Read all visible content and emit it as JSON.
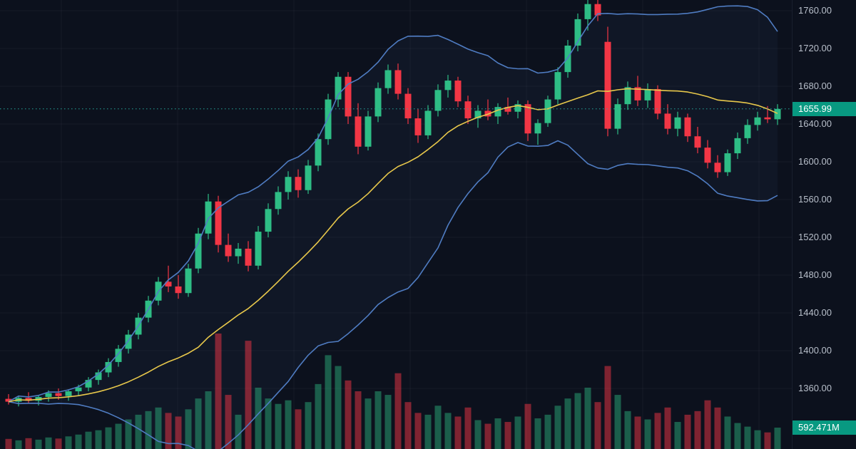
{
  "price_axis": {
    "tick_labels": [
      "1760.00",
      "1720.00",
      "1680.00",
      "1640.00",
      "1600.00",
      "1560.00",
      "1520.00",
      "1480.00",
      "1440.00",
      "1400.00",
      "1360.00"
    ],
    "last_price_label": "1655.99",
    "last_volume_label": "592.471M"
  },
  "colors": {
    "background": "#0c111d",
    "up": "#2ebd85",
    "down": "#f23645",
    "volume_up": "rgba(46,189,133,0.45)",
    "volume_down": "rgba(242,54,69,0.5)",
    "bollinger_band": "#4f7cc2",
    "bollinger_fill": "rgba(79,124,194,0.06)",
    "bollinger_basis": "#e8c84b",
    "last_price_line": "#26a69a",
    "badge_background": "#089981",
    "axis_text": "#b8bfca",
    "grid": "rgba(151,161,186,0.07)"
  },
  "chart_data": {
    "type": "candlestick",
    "title": "",
    "legend_position": "none",
    "grid": true,
    "last_price": 1655.99,
    "y_axis": {
      "visible_price_range": [
        1295.9,
        1771.3
      ],
      "tick_step": 40,
      "ticks": [
        1760,
        1720,
        1680,
        1640,
        1600,
        1560,
        1520,
        1480,
        1440,
        1400,
        1360
      ]
    },
    "indicators": [
      {
        "name": "bollinger-bands",
        "period": 20,
        "stddev_mult": 2
      },
      {
        "name": "sma-basis",
        "period": 20
      },
      {
        "name": "volume",
        "last_value_label": "592.471M",
        "unit": "M"
      }
    ],
    "candles_ohlcv": [
      [
        1349,
        1354,
        1343,
        1346,
        280
      ],
      [
        1346,
        1352,
        1341,
        1350,
        240
      ],
      [
        1350,
        1356,
        1344,
        1347,
        300
      ],
      [
        1347,
        1353,
        1342,
        1351,
        260
      ],
      [
        1351,
        1358,
        1346,
        1355,
        320
      ],
      [
        1355,
        1360,
        1348,
        1352,
        290
      ],
      [
        1352,
        1359,
        1347,
        1357,
        350
      ],
      [
        1357,
        1364,
        1352,
        1361,
        400
      ],
      [
        1361,
        1372,
        1357,
        1369,
        480
      ],
      [
        1369,
        1380,
        1364,
        1377,
        520
      ],
      [
        1377,
        1392,
        1372,
        1388,
        600
      ],
      [
        1388,
        1406,
        1383,
        1402,
        700
      ],
      [
        1402,
        1422,
        1397,
        1417,
        820
      ],
      [
        1417,
        1440,
        1412,
        1435,
        950
      ],
      [
        1435,
        1458,
        1430,
        1453,
        1050
      ],
      [
        1453,
        1478,
        1448,
        1473,
        1150
      ],
      [
        1473,
        1490,
        1462,
        1468,
        1000
      ],
      [
        1468,
        1480,
        1455,
        1461,
        900
      ],
      [
        1461,
        1492,
        1457,
        1487,
        1100
      ],
      [
        1487,
        1530,
        1482,
        1524,
        1400
      ],
      [
        1524,
        1566,
        1518,
        1558,
        1600
      ],
      [
        1558,
        1564,
        1504,
        1512,
        3200
      ],
      [
        1512,
        1524,
        1494,
        1500,
        1500
      ],
      [
        1500,
        1514,
        1492,
        1508,
        950
      ],
      [
        1508,
        1516,
        1484,
        1490,
        3000
      ],
      [
        1490,
        1532,
        1486,
        1526,
        1700
      ],
      [
        1526,
        1556,
        1520,
        1550,
        1400
      ],
      [
        1550,
        1574,
        1544,
        1568,
        1250
      ],
      [
        1568,
        1590,
        1560,
        1584,
        1350
      ],
      [
        1584,
        1592,
        1562,
        1570,
        1100
      ],
      [
        1570,
        1602,
        1566,
        1596,
        1300
      ],
      [
        1596,
        1630,
        1590,
        1624,
        1800
      ],
      [
        1624,
        1672,
        1618,
        1666,
        2600
      ],
      [
        1666,
        1695,
        1658,
        1690,
        2300
      ],
      [
        1690,
        1695,
        1640,
        1648,
        1900
      ],
      [
        1648,
        1662,
        1608,
        1616,
        1600
      ],
      [
        1616,
        1654,
        1612,
        1648,
        1400
      ],
      [
        1648,
        1684,
        1642,
        1678,
        1600
      ],
      [
        1678,
        1703,
        1672,
        1697,
        1500
      ],
      [
        1697,
        1704,
        1666,
        1672,
        2100
      ],
      [
        1672,
        1678,
        1640,
        1646,
        1300
      ],
      [
        1646,
        1656,
        1620,
        1628,
        1000
      ],
      [
        1628,
        1660,
        1624,
        1654,
        950
      ],
      [
        1654,
        1682,
        1648,
        1676,
        1200
      ],
      [
        1676,
        1692,
        1668,
        1686,
        1000
      ],
      [
        1686,
        1690,
        1658,
        1664,
        900
      ],
      [
        1664,
        1670,
        1640,
        1646,
        1150
      ],
      [
        1646,
        1660,
        1636,
        1654,
        800
      ],
      [
        1654,
        1666,
        1644,
        1648,
        700
      ],
      [
        1648,
        1662,
        1640,
        1658,
        850
      ],
      [
        1658,
        1668,
        1650,
        1653,
        750
      ],
      [
        1653,
        1665,
        1646,
        1661,
        900
      ],
      [
        1661,
        1665,
        1622,
        1630,
        1250
      ],
      [
        1630,
        1645,
        1618,
        1641,
        850
      ],
      [
        1641,
        1670,
        1637,
        1666,
        950
      ],
      [
        1666,
        1700,
        1661,
        1695,
        1200
      ],
      [
        1695,
        1729,
        1689,
        1723,
        1400
      ],
      [
        1723,
        1757,
        1717,
        1751,
        1550
      ],
      [
        1751,
        1773,
        1739,
        1767,
        1700
      ],
      [
        1767,
        1775,
        1749,
        1755,
        1300
      ],
      [
        1727,
        1743,
        1627,
        1635,
        2300
      ],
      [
        1635,
        1667,
        1629,
        1661,
        1500
      ],
      [
        1661,
        1685,
        1655,
        1679,
        1050
      ],
      [
        1679,
        1691,
        1659,
        1665,
        900
      ],
      [
        1665,
        1683,
        1657,
        1677,
        820
      ],
      [
        1677,
        1681,
        1645,
        1651,
        1000
      ],
      [
        1651,
        1661,
        1629,
        1635,
        1150
      ],
      [
        1635,
        1653,
        1627,
        1647,
        750
      ],
      [
        1647,
        1651,
        1621,
        1627,
        950
      ],
      [
        1627,
        1637,
        1609,
        1615,
        1050
      ],
      [
        1615,
        1623,
        1593,
        1599,
        1350
      ],
      [
        1599,
        1607,
        1583,
        1589,
        1150
      ],
      [
        1589,
        1613,
        1585,
        1609,
        900
      ],
      [
        1609,
        1631,
        1603,
        1625,
        720
      ],
      [
        1625,
        1645,
        1619,
        1639,
        620
      ],
      [
        1639,
        1653,
        1633,
        1647,
        520
      ],
      [
        1647,
        1659,
        1641,
        1645,
        460
      ],
      [
        1645,
        1661,
        1639,
        1655.99,
        592.471
      ]
    ]
  }
}
